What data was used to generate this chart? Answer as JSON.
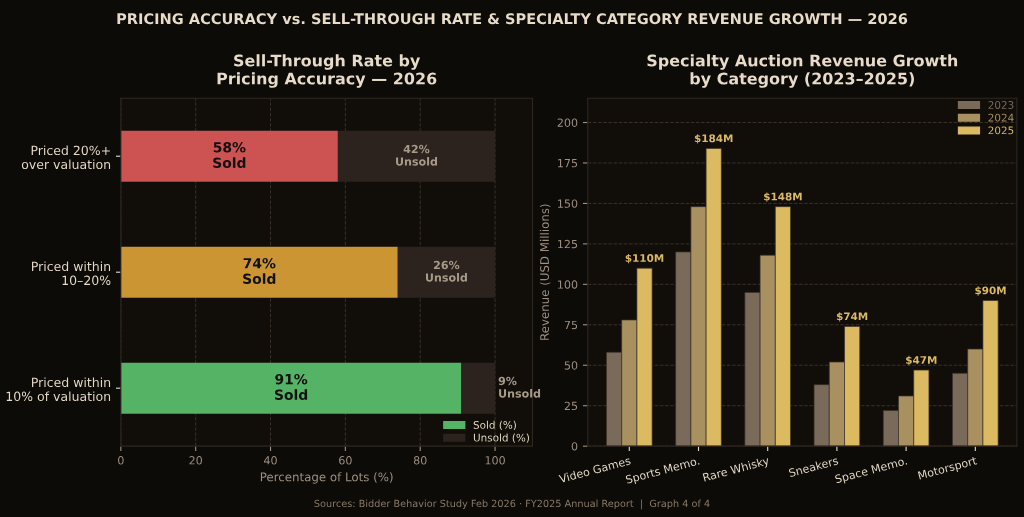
{
  "chart_data": [
    {
      "type": "bar",
      "orientation": "horizontal",
      "stacked": true,
      "title": "Sell-Through Rate by\nPricing Accuracy — 2026",
      "xlabel": "Percentage of Lots (%)",
      "categories": [
        "Priced 20%+\nover valuation",
        "Priced within\n10–20%",
        "Priced within\n10% of valuation"
      ],
      "series": [
        {
          "name": "Sold (%)",
          "color": "#55b366",
          "colors": [
            "#cd5252",
            "#cc9534",
            "#55b366"
          ],
          "values": [
            58,
            74,
            91
          ],
          "value_labels": [
            "58%\nSold",
            "74%\nSold",
            "91%\nSold"
          ]
        },
        {
          "name": "Unsold (%)",
          "color": "#2c231e",
          "values": [
            42,
            26,
            9
          ],
          "value_labels": [
            "42%\nUnsold",
            "26%\nUnsold",
            "9%\nUnsold"
          ]
        }
      ],
      "xlim": [
        0,
        110
      ],
      "xticks": [
        0,
        20,
        40,
        60,
        80,
        100
      ],
      "grid": "x",
      "legend": "bottom right",
      "annotations": [
        "PRICING ACCURACY vs. SELL-THROUGH RATE & SPECIALTY CATEGORY REVENUE GROWTH — 2026"
      ]
    },
    {
      "type": "bar",
      "title": "Specialty Auction Revenue Growth\nby Category (2023–2025)",
      "ylabel": "Revenue (USD Millions)",
      "categories": [
        "Video Games",
        "Sports Memo.",
        "Rare Whisky",
        "Sneakers",
        "Space Memo.",
        "Motorsport"
      ],
      "series": [
        {
          "name": "2023",
          "color": "#7a6a5a",
          "values": [
            58,
            120,
            95,
            38,
            22,
            45
          ]
        },
        {
          "name": "2024",
          "color": "#a89060",
          "values": [
            78,
            148,
            118,
            52,
            31,
            60
          ]
        },
        {
          "name": "2025",
          "color": "#dcba62",
          "values": [
            110,
            184,
            148,
            74,
            47,
            90
          ],
          "value_labels": [
            "$110M",
            "$184M",
            "$148M",
            "$74M",
            "$47M",
            "$90M"
          ]
        }
      ],
      "ylim": [
        0,
        215
      ],
      "yticks": [
        0,
        25,
        50,
        75,
        100,
        125,
        150,
        175,
        200
      ],
      "grid": "y",
      "legend": "top right",
      "annotations": [
        "Sources: Bidder Behavior Study Feb 2026 · FY2025 Annual Report  |  Graph 4 of 4"
      ]
    }
  ]
}
